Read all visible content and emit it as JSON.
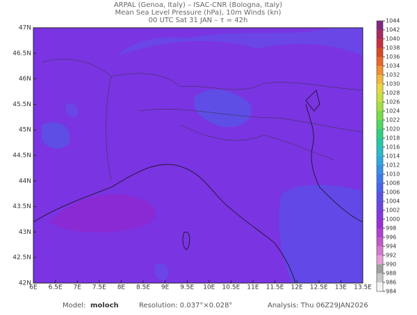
{
  "header": {
    "lines": [
      "ARPAL (Genoa, Italy)  –  ISAC-CNR (Bologna, Italy)",
      "Mean Sea Level Pressure (hPa), 10m Winds (kn)",
      "00 UTC Sat 31 JAN  –  τ = 42h"
    ]
  },
  "map": {
    "lon_ticks": [
      {
        "value": 6,
        "label": "6E"
      },
      {
        "value": 6.5,
        "label": "6.5E"
      },
      {
        "value": 7,
        "label": "7E"
      },
      {
        "value": 7.5,
        "label": "7.5E"
      },
      {
        "value": 8,
        "label": "8E"
      },
      {
        "value": 8.5,
        "label": "8.5E"
      },
      {
        "value": 9,
        "label": "9E"
      },
      {
        "value": 9.5,
        "label": "9.5E"
      },
      {
        "value": 10,
        "label": "10E"
      },
      {
        "value": 10.5,
        "label": "10.5E"
      },
      {
        "value": 11,
        "label": "11E"
      },
      {
        "value": 11.5,
        "label": "11.5E"
      },
      {
        "value": 12,
        "label": "12E"
      },
      {
        "value": 12.5,
        "label": "12.5E"
      },
      {
        "value": 13,
        "label": "13E"
      },
      {
        "value": 13.5,
        "label": "13.5E"
      }
    ],
    "lat_ticks": [
      {
        "value": 42,
        "label": "42N"
      },
      {
        "value": 42.5,
        "label": "42.5N"
      },
      {
        "value": 43,
        "label": "43N"
      },
      {
        "value": 43.5,
        "label": "43.5N"
      },
      {
        "value": 44,
        "label": "44N"
      },
      {
        "value": 44.5,
        "label": "44.5N"
      },
      {
        "value": 45,
        "label": "45N"
      },
      {
        "value": 45.5,
        "label": "45.5N"
      },
      {
        "value": 46,
        "label": "46N"
      },
      {
        "value": 46.5,
        "label": "46.5N"
      },
      {
        "value": 47,
        "label": "47N"
      }
    ]
  },
  "colorbar": {
    "ticks": [
      984,
      986,
      988,
      990,
      992,
      994,
      996,
      998,
      1000,
      1002,
      1004,
      1006,
      1008,
      1010,
      1012,
      1014,
      1016,
      1018,
      1020,
      1022,
      1024,
      1026,
      1028,
      1030,
      1032,
      1034,
      1036,
      1038,
      1040,
      1042,
      1044
    ],
    "colors": [
      "#f4f4f4",
      "#c8c8c8",
      "#a0a0a0",
      "#e6a0d8",
      "#d27ad0",
      "#c05ac8",
      "#b040d0",
      "#9a2ed8",
      "#8436e0",
      "#6a44e4",
      "#5a52e8",
      "#4a62ec",
      "#3e78ee",
      "#3890ea",
      "#30a8e0",
      "#28bcc8",
      "#24c8a8",
      "#30d080",
      "#50d860",
      "#78dc48",
      "#a0e040",
      "#c8e040",
      "#e8d840",
      "#f0b838",
      "#f09030",
      "#e86828",
      "#d84828",
      "#c83040",
      "#a82860",
      "#802880"
    ]
  },
  "footer": {
    "model_label": "Model:",
    "model": "moloch",
    "resolution": "Resolution: 0.037°×0.028°",
    "analysis": "Analysis: Thu 06Z29JAN2026"
  }
}
